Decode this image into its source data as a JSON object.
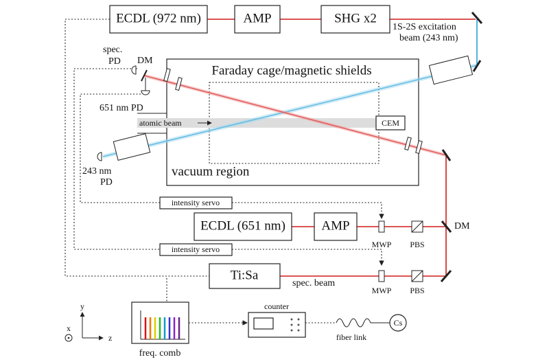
{
  "top": {
    "ecdl": "ECDL (972 nm)",
    "amp": "AMP",
    "shg": "SHG x2",
    "beam_line1": "1S-2S excitation",
    "beam_line2": "beam (243 nm)"
  },
  "chamber": {
    "title": "Faraday cage/magnetic shields",
    "region": "vacuum region",
    "atomic_beam": "atomic beam",
    "cem": "CEM"
  },
  "detectors": {
    "spec_line1": "spec.",
    "spec_line2": "PD",
    "dm_top": "DM",
    "pd651": "651 nm PD",
    "pd243_line1": "243 nm",
    "pd243_line2": "PD"
  },
  "servo": [
    "intensity servo",
    "intensity servo"
  ],
  "red_laser": {
    "ecdl": "ECDL (651 nm)",
    "amp": "AMP",
    "mwp": "MWP",
    "pbs": "PBS",
    "dm": "DM"
  },
  "tisa": {
    "label": "Ti:Sa",
    "beam": "spec. beam",
    "mwp": "MWP",
    "pbs": "PBS"
  },
  "bottom": {
    "comb": "freq. comb",
    "counter": "counter",
    "fiber": "fiber link",
    "cs": "Cs"
  },
  "axes": {
    "y": "y",
    "x": "x",
    "z": "z"
  }
}
